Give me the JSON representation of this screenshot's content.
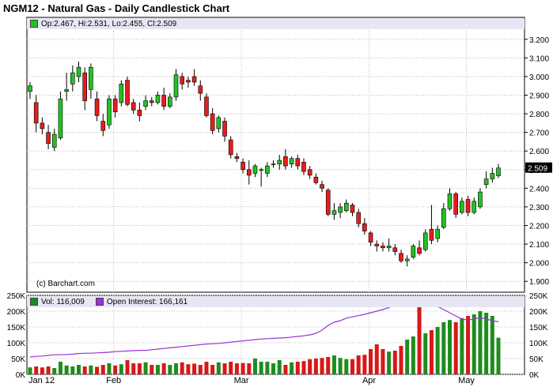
{
  "title": "NGM12 - Natural Gas - Daily Candlestick Chart",
  "ohlc_label": "Op:2.467, Hi:2.531, Lo:2.455, Cl:2.509",
  "last_price_label": "2.509",
  "copyright": "(c) Barchart.com",
  "vol_label": "Vol: 116,009",
  "oi_label": "Open Interest: 166,161",
  "colors": {
    "up": "#22c222",
    "down": "#e81c1c",
    "vol_up": "#1e8c1e",
    "vol_down": "#d81818",
    "oi_line": "#9b30d8",
    "info_bg": "#e6e6f4",
    "grid": "#bbbbbb"
  },
  "chart_data": [
    {
      "type": "candlestick",
      "title": "NGM12 - Natural Gas - Daily Candlestick Chart",
      "ylim": [
        1.85,
        3.25
      ],
      "y_ticks": [
        "1.900",
        "2.000",
        "2.100",
        "2.200",
        "2.300",
        "2.400",
        "2.500",
        "2.600",
        "2.700",
        "2.800",
        "2.900",
        "3.000",
        "3.100",
        "3.200"
      ],
      "x_ticks": [
        "Jan 12",
        "Feb",
        "Mar",
        "Apr",
        "May"
      ],
      "grid": true,
      "ohlc": [
        {
          "o": 2.92,
          "h": 2.97,
          "l": 2.88,
          "c": 2.95
        },
        {
          "o": 2.86,
          "h": 2.9,
          "l": 2.7,
          "c": 2.75
        },
        {
          "o": 2.75,
          "h": 2.78,
          "l": 2.69,
          "c": 2.72
        },
        {
          "o": 2.7,
          "h": 2.74,
          "l": 2.61,
          "c": 2.64
        },
        {
          "o": 2.62,
          "h": 2.72,
          "l": 2.6,
          "c": 2.69
        },
        {
          "o": 2.67,
          "h": 2.92,
          "l": 2.66,
          "c": 2.88
        },
        {
          "o": 2.92,
          "h": 3.02,
          "l": 2.87,
          "c": 2.93
        },
        {
          "o": 2.96,
          "h": 3.06,
          "l": 2.92,
          "c": 3.02
        },
        {
          "o": 3.0,
          "h": 3.08,
          "l": 2.97,
          "c": 3.05
        },
        {
          "o": 3.02,
          "h": 3.05,
          "l": 2.82,
          "c": 2.87
        },
        {
          "o": 2.93,
          "h": 3.07,
          "l": 2.88,
          "c": 3.05
        },
        {
          "o": 2.88,
          "h": 2.92,
          "l": 2.76,
          "c": 2.79
        },
        {
          "o": 2.76,
          "h": 2.8,
          "l": 2.68,
          "c": 2.71
        },
        {
          "o": 2.74,
          "h": 2.9,
          "l": 2.72,
          "c": 2.88
        },
        {
          "o": 2.88,
          "h": 2.9,
          "l": 2.78,
          "c": 2.81
        },
        {
          "o": 2.86,
          "h": 2.98,
          "l": 2.84,
          "c": 2.96
        },
        {
          "o": 2.98,
          "h": 3.0,
          "l": 2.84,
          "c": 2.85
        },
        {
          "o": 2.86,
          "h": 2.88,
          "l": 2.8,
          "c": 2.82
        },
        {
          "o": 2.82,
          "h": 2.86,
          "l": 2.76,
          "c": 2.79
        },
        {
          "o": 2.84,
          "h": 2.9,
          "l": 2.82,
          "c": 2.87
        },
        {
          "o": 2.87,
          "h": 2.89,
          "l": 2.84,
          "c": 2.86
        },
        {
          "o": 2.86,
          "h": 2.92,
          "l": 2.85,
          "c": 2.9
        },
        {
          "o": 2.9,
          "h": 2.94,
          "l": 2.82,
          "c": 2.84
        },
        {
          "o": 2.84,
          "h": 2.91,
          "l": 2.83,
          "c": 2.89
        },
        {
          "o": 2.89,
          "h": 3.04,
          "l": 2.87,
          "c": 3.01
        },
        {
          "o": 3.0,
          "h": 3.02,
          "l": 2.93,
          "c": 2.96
        },
        {
          "o": 2.98,
          "h": 3.0,
          "l": 2.94,
          "c": 2.97
        },
        {
          "o": 3.0,
          "h": 3.04,
          "l": 2.95,
          "c": 2.97
        },
        {
          "o": 2.95,
          "h": 2.98,
          "l": 2.87,
          "c": 2.91
        },
        {
          "o": 2.89,
          "h": 2.91,
          "l": 2.78,
          "c": 2.79
        },
        {
          "o": 2.8,
          "h": 2.83,
          "l": 2.69,
          "c": 2.71
        },
        {
          "o": 2.72,
          "h": 2.79,
          "l": 2.7,
          "c": 2.78
        },
        {
          "o": 2.76,
          "h": 2.78,
          "l": 2.65,
          "c": 2.68
        },
        {
          "o": 2.66,
          "h": 2.68,
          "l": 2.56,
          "c": 2.58
        },
        {
          "o": 2.57,
          "h": 2.59,
          "l": 2.54,
          "c": 2.56
        },
        {
          "o": 2.54,
          "h": 2.56,
          "l": 2.48,
          "c": 2.5
        },
        {
          "o": 2.5,
          "h": 2.55,
          "l": 2.42,
          "c": 2.47
        },
        {
          "o": 2.48,
          "h": 2.53,
          "l": 2.46,
          "c": 2.52
        },
        {
          "o": 2.5,
          "h": 2.51,
          "l": 2.41,
          "c": 2.5
        },
        {
          "o": 2.48,
          "h": 2.54,
          "l": 2.46,
          "c": 2.52
        },
        {
          "o": 2.53,
          "h": 2.55,
          "l": 2.51,
          "c": 2.53
        },
        {
          "o": 2.53,
          "h": 2.58,
          "l": 2.5,
          "c": 2.55
        },
        {
          "o": 2.57,
          "h": 2.61,
          "l": 2.5,
          "c": 2.52
        },
        {
          "o": 2.53,
          "h": 2.57,
          "l": 2.51,
          "c": 2.56
        },
        {
          "o": 2.56,
          "h": 2.58,
          "l": 2.5,
          "c": 2.52
        },
        {
          "o": 2.54,
          "h": 2.56,
          "l": 2.47,
          "c": 2.49
        },
        {
          "o": 2.5,
          "h": 2.52,
          "l": 2.45,
          "c": 2.47
        },
        {
          "o": 2.46,
          "h": 2.48,
          "l": 2.42,
          "c": 2.43
        },
        {
          "o": 2.42,
          "h": 2.44,
          "l": 2.38,
          "c": 2.4
        },
        {
          "o": 2.39,
          "h": 2.4,
          "l": 2.25,
          "c": 2.26
        },
        {
          "o": 2.26,
          "h": 2.32,
          "l": 2.23,
          "c": 2.28
        },
        {
          "o": 2.27,
          "h": 2.32,
          "l": 2.24,
          "c": 2.3
        },
        {
          "o": 2.28,
          "h": 2.34,
          "l": 2.27,
          "c": 2.32
        },
        {
          "o": 2.31,
          "h": 2.32,
          "l": 2.25,
          "c": 2.27
        },
        {
          "o": 2.27,
          "h": 2.29,
          "l": 2.19,
          "c": 2.21
        },
        {
          "o": 2.21,
          "h": 2.24,
          "l": 2.15,
          "c": 2.17
        },
        {
          "o": 2.16,
          "h": 2.17,
          "l": 2.09,
          "c": 2.11
        },
        {
          "o": 2.1,
          "h": 2.12,
          "l": 2.06,
          "c": 2.09
        },
        {
          "o": 2.09,
          "h": 2.11,
          "l": 2.06,
          "c": 2.08
        },
        {
          "o": 2.08,
          "h": 2.13,
          "l": 2.06,
          "c": 2.09
        },
        {
          "o": 2.08,
          "h": 2.1,
          "l": 2.04,
          "c": 2.06
        },
        {
          "o": 2.05,
          "h": 2.07,
          "l": 2.0,
          "c": 2.01
        },
        {
          "o": 2.01,
          "h": 2.04,
          "l": 1.98,
          "c": 2.02
        },
        {
          "o": 2.03,
          "h": 2.1,
          "l": 2.02,
          "c": 2.09
        },
        {
          "o": 2.08,
          "h": 2.12,
          "l": 2.04,
          "c": 2.05
        },
        {
          "o": 2.07,
          "h": 2.18,
          "l": 2.06,
          "c": 2.16
        },
        {
          "o": 2.18,
          "h": 2.31,
          "l": 2.1,
          "c": 2.12
        },
        {
          "o": 2.13,
          "h": 2.2,
          "l": 2.11,
          "c": 2.18
        },
        {
          "o": 2.19,
          "h": 2.32,
          "l": 2.18,
          "c": 2.29
        },
        {
          "o": 2.29,
          "h": 2.4,
          "l": 2.28,
          "c": 2.37
        },
        {
          "o": 2.37,
          "h": 2.38,
          "l": 2.24,
          "c": 2.26
        },
        {
          "o": 2.27,
          "h": 2.35,
          "l": 2.26,
          "c": 2.33
        },
        {
          "o": 2.34,
          "h": 2.36,
          "l": 2.25,
          "c": 2.27
        },
        {
          "o": 2.27,
          "h": 2.35,
          "l": 2.26,
          "c": 2.33
        },
        {
          "o": 2.3,
          "h": 2.4,
          "l": 2.29,
          "c": 2.38
        },
        {
          "o": 2.42,
          "h": 2.49,
          "l": 2.4,
          "c": 2.45
        },
        {
          "o": 2.45,
          "h": 2.51,
          "l": 2.43,
          "c": 2.48
        },
        {
          "o": 2.467,
          "h": 2.531,
          "l": 2.455,
          "c": 2.509
        }
      ]
    },
    {
      "type": "bar+line",
      "title": "Vol: 116,009 / Open Interest: 166,161",
      "ylim": [
        0,
        250000
      ],
      "y_ticks": [
        "0K",
        "50K",
        "100K",
        "150K",
        "200K",
        "250K"
      ],
      "series": [
        {
          "name": "Vol",
          "values": [
            22000,
            25000,
            22000,
            25000,
            20000,
            40000,
            28000,
            25000,
            30000,
            25000,
            28000,
            24000,
            30000,
            35000,
            28000,
            32000,
            45000,
            35000,
            35000,
            38000,
            30000,
            30000,
            35000,
            30000,
            35000,
            38000,
            32000,
            34000,
            30000,
            40000,
            30000,
            38000,
            35000,
            40000,
            35000,
            36000,
            35000,
            50000,
            40000,
            40000,
            35000,
            45000,
            30000,
            38000,
            40000,
            42000,
            48000,
            50000,
            52000,
            55000,
            60000,
            52000,
            48000,
            48000,
            60000,
            62000,
            80000,
            95000,
            80000,
            72000,
            75000,
            90000,
            110000,
            120000,
            240000,
            130000,
            140000,
            150000,
            165000,
            172000,
            165000,
            178000,
            185000,
            190000,
            200000,
            195000,
            185000,
            116009
          ]
        },
        {
          "name": "Open Interest",
          "values": [
            55000,
            57000,
            58000,
            60000,
            62000,
            62000,
            63000,
            64000,
            66000,
            67000,
            67000,
            68000,
            69000,
            70000,
            72000,
            73000,
            74000,
            75000,
            76000,
            76000,
            78000,
            80000,
            82000,
            84000,
            86000,
            88000,
            90000,
            92000,
            94000,
            96000,
            97000,
            98000,
            100000,
            102000,
            104000,
            106000,
            108000,
            110000,
            112000,
            113000,
            114000,
            115000,
            116000,
            118000,
            120000,
            122000,
            125000,
            130000,
            140000,
            155000,
            165000,
            170000,
            178000,
            182000,
            186000,
            190000,
            195000,
            200000,
            205000,
            212000,
            220000,
            228000,
            236000,
            240000,
            242000,
            235000,
            225000,
            215000,
            205000,
            195000,
            185000,
            175000,
            172000,
            175000,
            180000,
            175000,
            170000,
            166161
          ]
        }
      ]
    }
  ]
}
